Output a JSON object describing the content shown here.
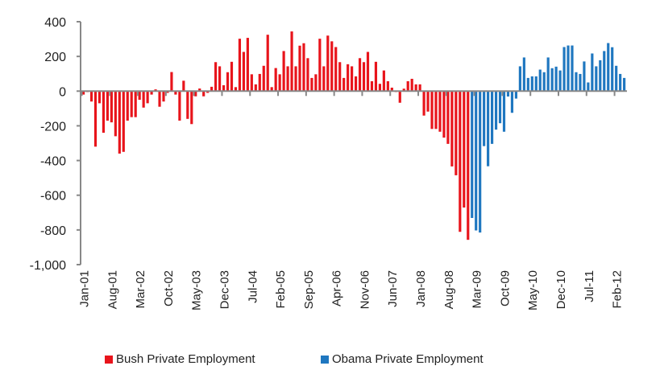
{
  "chart_data": {
    "type": "bar",
    "title": "",
    "xlabel": "",
    "ylabel": "",
    "ylim": [
      -1000,
      400
    ],
    "yticks": [
      "400",
      "200",
      "0",
      "-200",
      "-400",
      "-600",
      "-800",
      "-1,000"
    ],
    "ytick_values": [
      400,
      200,
      0,
      -200,
      -400,
      -600,
      -800,
      -1000
    ],
    "xtick_labels": [
      "Jan-01",
      "Aug-01",
      "Mar-02",
      "Oct-02",
      "May-03",
      "Dec-03",
      "Jul-04",
      "Feb-05",
      "Sep-05",
      "Apr-06",
      "Nov-06",
      "Jun-07",
      "Jan-08",
      "Aug-08",
      "Mar-09",
      "Oct-09",
      "May-10",
      "Dec-10",
      "Jul-11",
      "Feb-12"
    ],
    "xtick_every_months": 7,
    "start_month": "Jan-01",
    "grid": false,
    "legend_position": "bottom",
    "series": [
      {
        "name": "Bush Private Employment",
        "color": "#e8141b",
        "values": [
          -20,
          -5,
          -60,
          -320,
          -70,
          -240,
          -170,
          -180,
          -260,
          -360,
          -350,
          -170,
          -150,
          -150,
          -50,
          -95,
          -70,
          -20,
          10,
          -90,
          -60,
          -10,
          110,
          -20,
          -170,
          60,
          -160,
          -190,
          -30,
          15,
          -30,
          -10,
          25,
          167,
          143,
          34,
          109,
          169,
          23,
          302,
          226,
          307,
          97,
          39,
          99,
          146,
          325,
          23,
          133,
          97,
          231,
          143,
          344,
          143,
          262,
          276,
          190,
          76,
          97,
          302,
          143,
          320,
          287,
          254,
          167,
          76,
          155,
          143,
          85,
          190,
          167,
          226,
          57,
          169,
          42,
          119,
          57,
          20,
          -5,
          -67,
          14,
          57,
          71,
          39,
          39,
          -141,
          -118,
          -218,
          -218,
          -234,
          -268,
          -304,
          -434,
          -485,
          -811,
          -671,
          -857
        ]
      },
      {
        "name": "Obama Private Employment",
        "color": "#1f77c0",
        "values": [
          -731,
          -803,
          -815,
          -317,
          -433,
          -304,
          -222,
          -185,
          -234,
          -31,
          -125,
          -43,
          143,
          194,
          76,
          85,
          85,
          124,
          109,
          194,
          132,
          141,
          119,
          254,
          263,
          263,
          109,
          99,
          171,
          50,
          217,
          143,
          178,
          231,
          277,
          253,
          146,
          99,
          76
        ]
      }
    ]
  }
}
